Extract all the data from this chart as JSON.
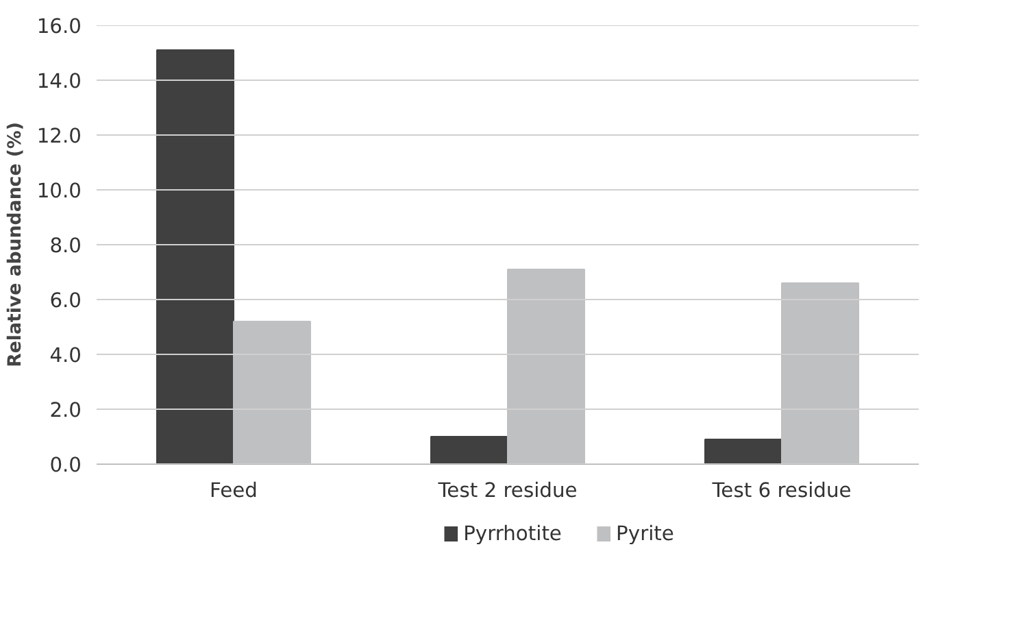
{
  "chart_data": {
    "type": "bar",
    "ylabel": "Relative abundance (%)",
    "categories": [
      "Feed",
      "Test 2 residue",
      "Test 6 residue"
    ],
    "series": [
      {
        "name": "Pyrrhotite",
        "color": "#404040",
        "values": [
          15.1,
          1.0,
          0.9
        ]
      },
      {
        "name": "Pyrite",
        "color": "#bfc0c2",
        "values": [
          5.2,
          7.1,
          6.6
        ]
      }
    ],
    "ylim": [
      0,
      16
    ],
    "yticks": [
      {
        "value": 0,
        "label": "0.0"
      },
      {
        "value": 2,
        "label": "2.0"
      },
      {
        "value": 4,
        "label": "4.0"
      },
      {
        "value": 6,
        "label": "6.0"
      },
      {
        "value": 8,
        "label": "8.0"
      },
      {
        "value": 10,
        "label": "10.0"
      },
      {
        "value": 12,
        "label": "12.0"
      },
      {
        "value": 14,
        "label": "14.0"
      },
      {
        "value": 16,
        "label": "16.0"
      }
    ],
    "grid": "y",
    "legend": "bottom"
  }
}
